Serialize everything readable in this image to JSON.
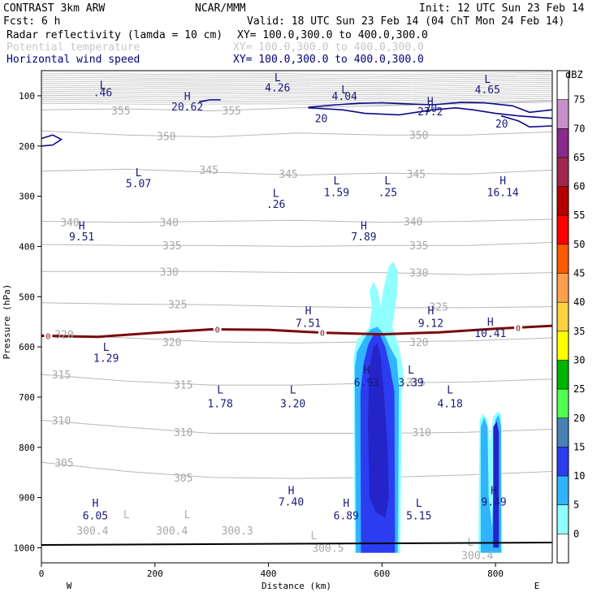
{
  "header": {
    "line1_left": "CONTRAST  3km ARW",
    "line1_mid": "NCAR/MMM",
    "line1_right": "Init: 12 UTC Sun 23 Feb 14",
    "line2_left": "Fcst:     6 h",
    "line2_right": "Valid: 18 UTC Sun 23 Feb 14 (04 ChT Mon 24 Feb 14)",
    "field1_name": "Radar reflectivity (lamda = 10 cm)",
    "field1_xy": "XY= 100.0,300.0 to 400.0,300.0",
    "field2_name": "Potential temperature",
    "field2_xy": "XY= 100.0,300.0 to 400.0,300.0",
    "field3_name": "Horizontal wind speed",
    "field3_xy": "XY= 100.0,300.0 to 400.0,300.0"
  },
  "colors": {
    "theta": "#a8a8a8",
    "wind": "#0a0a8a",
    "freezing": "#7a0a0a",
    "dbz_5": "#8fffff",
    "dbz_10": "#30b4ff",
    "dbz_15": "#2c3cf0",
    "dbz_20": "#2424c8"
  },
  "chart_data": {
    "type": "cross-section",
    "xlabel": "Distance (km)",
    "ylabel": "Pressure (hPa)",
    "x_ticks": [
      "0",
      "200",
      "400",
      "600",
      "800"
    ],
    "x_tick_values": [
      0,
      200,
      400,
      600,
      800
    ],
    "xlim": [
      0,
      900
    ],
    "y_ticks": [
      "100",
      "200",
      "300",
      "400",
      "500",
      "600",
      "700",
      "800",
      "900",
      "1000"
    ],
    "y_tick_values": [
      100,
      200,
      300,
      400,
      500,
      600,
      700,
      800,
      900,
      1000
    ],
    "ylim_top": 50,
    "ylim_bottom": 1030,
    "west_label": "W",
    "east_label": "E",
    "colorbar": {
      "unit": "dBZ",
      "labels": [
        "75",
        "70",
        "65",
        "60",
        "55",
        "50",
        "45",
        "40",
        "35",
        "30",
        "25",
        "20",
        "15",
        "10",
        "5",
        "0"
      ],
      "colors": [
        "#ffffff",
        "#c890c8",
        "#8a2a8a",
        "#a02850",
        "#b40000",
        "#ff0000",
        "#ff5a00",
        "#ffa050",
        "#ffd040",
        "#ffff00",
        "#00b400",
        "#50ff50",
        "#4682b4",
        "#2c3cf0",
        "#30b4ff",
        "#8fffff",
        "#ffffff"
      ]
    },
    "theta_labels": [
      {
        "text": "355",
        "x": 140,
        "p": 129
      },
      {
        "text": "355",
        "x": 335,
        "p": 129
      },
      {
        "text": "350",
        "x": 220,
        "p": 180
      },
      {
        "text": "350",
        "x": 665,
        "p": 178
      },
      {
        "text": "345",
        "x": 295,
        "p": 247
      },
      {
        "text": "345",
        "x": 435,
        "p": 255
      },
      {
        "text": "345",
        "x": 660,
        "p": 255
      },
      {
        "text": "340",
        "x": 50,
        "p": 352
      },
      {
        "text": "340",
        "x": 225,
        "p": 352
      },
      {
        "text": "340",
        "x": 655,
        "p": 350
      },
      {
        "text": "335",
        "x": 230,
        "p": 398
      },
      {
        "text": "335",
        "x": 665,
        "p": 398
      },
      {
        "text": "330",
        "x": 225,
        "p": 450
      },
      {
        "text": "330",
        "x": 665,
        "p": 452
      },
      {
        "text": "325",
        "x": 240,
        "p": 515
      },
      {
        "text": "325",
        "x": 700,
        "p": 520
      },
      {
        "text": "320",
        "x": 40,
        "p": 575
      },
      {
        "text": "320",
        "x": 230,
        "p": 590
      },
      {
        "text": "320",
        "x": 665,
        "p": 590
      },
      {
        "text": "315",
        "x": 35,
        "p": 655
      },
      {
        "text": "315",
        "x": 250,
        "p": 675
      },
      {
        "text": "315",
        "x": 660,
        "p": 670
      },
      {
        "text": "310",
        "x": 35,
        "p": 746
      },
      {
        "text": "310",
        "x": 250,
        "p": 770
      },
      {
        "text": "310",
        "x": 670,
        "p": 770
      },
      {
        "text": "305",
        "x": 40,
        "p": 830
      },
      {
        "text": "305",
        "x": 250,
        "p": 860
      },
      {
        "text": "300.4",
        "x": 90,
        "p": 965
      },
      {
        "text": "300.4",
        "x": 230,
        "p": 965
      },
      {
        "text": "300.3",
        "x": 345,
        "p": 965
      },
      {
        "text": "300.5",
        "x": 505,
        "p": 1000
      },
      {
        "text": "300.4",
        "x": 768,
        "p": 1015
      }
    ],
    "extrema_gray": [
      {
        "text": "L",
        "x": 150,
        "p": 933
      },
      {
        "text": "L",
        "x": 257,
        "p": 933
      },
      {
        "text": "L",
        "x": 480,
        "p": 975
      },
      {
        "text": "L",
        "x": 756,
        "p": 988
      }
    ],
    "wind_extrema": [
      {
        "type": "L",
        "value": ".46",
        "x": 108,
        "p": 78,
        "vp": 93
      },
      {
        "type": "L",
        "value": "4.26",
        "x": 416,
        "p": 63,
        "vp": 83
      },
      {
        "type": "L",
        "value": "4.04",
        "x": 534,
        "p": 87,
        "vp": 100
      },
      {
        "type": "L",
        "value": "4.65",
        "x": 786,
        "p": 66,
        "vp": 87
      },
      {
        "type": "H",
        "value": "20.62",
        "x": 257,
        "p": 100,
        "vp": 121
      },
      {
        "type": "H",
        "value": "27.2",
        "x": 685,
        "p": 111,
        "vp": 131
      },
      {
        "type": "L",
        "value": "5.07",
        "x": 171,
        "p": 252,
        "vp": 274
      },
      {
        "type": "L",
        "value": "1.59",
        "x": 520,
        "p": 268,
        "vp": 292
      },
      {
        "type": "L",
        "value": ".25",
        "x": 610,
        "p": 268,
        "vp": 292
      },
      {
        "type": "H",
        "value": "16.14",
        "x": 813,
        "p": 268,
        "vp": 292
      },
      {
        "type": "L",
        "value": ".26",
        "x": 413,
        "p": 293,
        "vp": 315
      },
      {
        "type": "H",
        "value": "9.51",
        "x": 71,
        "p": 358,
        "vp": 380
      },
      {
        "type": "H",
        "value": "7.89",
        "x": 568,
        "p": 358,
        "vp": 380
      },
      {
        "type": "H",
        "value": "7.51",
        "x": 470,
        "p": 527,
        "vp": 552
      },
      {
        "type": "H",
        "value": "9.12",
        "x": 686,
        "p": 527,
        "vp": 552
      },
      {
        "type": "H",
        "value": "10.41",
        "x": 791,
        "p": 550,
        "vp": 572
      },
      {
        "type": "L",
        "value": "1.29",
        "x": 114,
        "p": 600,
        "vp": 622
      },
      {
        "type": "H",
        "value": "6.93",
        "x": 573,
        "p": 645,
        "vp": 670
      },
      {
        "type": "L",
        "value": "3.39",
        "x": 651,
        "p": 645,
        "vp": 670
      },
      {
        "type": "L",
        "value": "1.78",
        "x": 315,
        "p": 685,
        "vp": 712
      },
      {
        "type": "L",
        "value": "3.20",
        "x": 443,
        "p": 685,
        "vp": 712
      },
      {
        "type": "L",
        "value": "4.18",
        "x": 720,
        "p": 685,
        "vp": 712
      },
      {
        "type": "H",
        "value": "7.40",
        "x": 440,
        "p": 885,
        "vp": 908
      },
      {
        "type": "H",
        "value": "9.49",
        "x": 797,
        "p": 885,
        "vp": 908
      },
      {
        "type": "H",
        "value": "6.05",
        "x": 95,
        "p": 910,
        "vp": 935
      },
      {
        "type": "H",
        "value": "6.89",
        "x": 537,
        "p": 910,
        "vp": 935
      },
      {
        "type": "L",
        "value": "5.15",
        "x": 665,
        "p": 910,
        "vp": 935
      }
    ],
    "wind_contour_labels": [
      {
        "text": "20",
        "x": 493,
        "p": 145
      },
      {
        "text": "20",
        "x": 811,
        "p": 155
      },
      {
        "text": "20",
        "x": 686,
        "p": 124
      }
    ],
    "freezing_level": {
      "label": "0",
      "x": [
        0,
        100,
        200,
        300,
        400,
        500,
        600,
        700,
        800,
        900
      ],
      "p": [
        578,
        580,
        572,
        565,
        566,
        572,
        575,
        571,
        564,
        558
      ],
      "label_x": [
        12,
        310,
        495,
        840
      ]
    }
  }
}
